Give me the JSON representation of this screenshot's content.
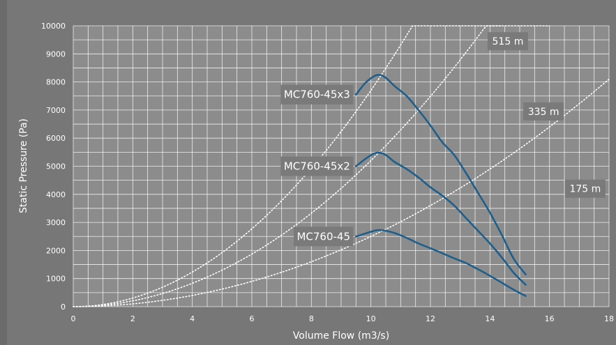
{
  "chart_data": {
    "type": "line",
    "xlabel": "Volume Flow (m3/s)",
    "ylabel": "Static Pressure (Pa)",
    "xlim": [
      0,
      18
    ],
    "ylim": [
      0,
      10000
    ],
    "x_ticks": [
      0,
      2,
      4,
      6,
      8,
      10,
      12,
      14,
      16,
      18
    ],
    "y_ticks": [
      0,
      1000,
      2000,
      3000,
      4000,
      5000,
      6000,
      7000,
      8000,
      9000,
      10000
    ],
    "grid": true,
    "colors": {
      "background": "#6b6b6b",
      "plot_background": "#8c8c8c",
      "grid": "#ffffff",
      "series": "#1f5f8b",
      "label_box": "#7a7a7a",
      "system_curve": "#ffffff"
    },
    "series": [
      {
        "name": "MC760-45x3",
        "x": [
          9.5,
          9.8,
          10.1,
          10.3,
          10.5,
          10.8,
          11.2,
          11.6,
          12.0,
          12.4,
          12.8,
          13.2,
          13.6,
          14.0,
          14.4,
          14.8,
          15.2
        ],
        "y": [
          7550,
          7950,
          8200,
          8250,
          8150,
          7850,
          7500,
          7000,
          6450,
          5850,
          5400,
          4750,
          4050,
          3350,
          2550,
          1700,
          1150
        ]
      },
      {
        "name": "MC760-45x2",
        "x": [
          9.5,
          9.8,
          10.1,
          10.3,
          10.5,
          10.8,
          11.2,
          11.6,
          12.0,
          12.4,
          12.8,
          13.2,
          13.6,
          14.0,
          14.4,
          14.8,
          15.2
        ],
        "y": [
          5000,
          5250,
          5450,
          5480,
          5400,
          5150,
          4900,
          4600,
          4250,
          3950,
          3600,
          3150,
          2700,
          2250,
          1750,
          1200,
          780
        ]
      },
      {
        "name": "MC760-45",
        "x": [
          9.5,
          9.8,
          10.1,
          10.3,
          10.5,
          10.8,
          11.2,
          11.6,
          12.0,
          12.4,
          12.8,
          13.2,
          13.6,
          14.0,
          14.4,
          14.8,
          15.2
        ],
        "y": [
          2500,
          2600,
          2700,
          2730,
          2700,
          2620,
          2450,
          2250,
          2080,
          1900,
          1720,
          1550,
          1330,
          1100,
          850,
          600,
          380
        ]
      }
    ],
    "system_curves": [
      {
        "label": "515 m",
        "k": 77,
        "x_max": 14.4
      },
      {
        "label": "335 m",
        "k": 52,
        "x_max": 16.0
      },
      {
        "label": "175 m",
        "k": 25,
        "x_max": 18.0
      }
    ]
  }
}
